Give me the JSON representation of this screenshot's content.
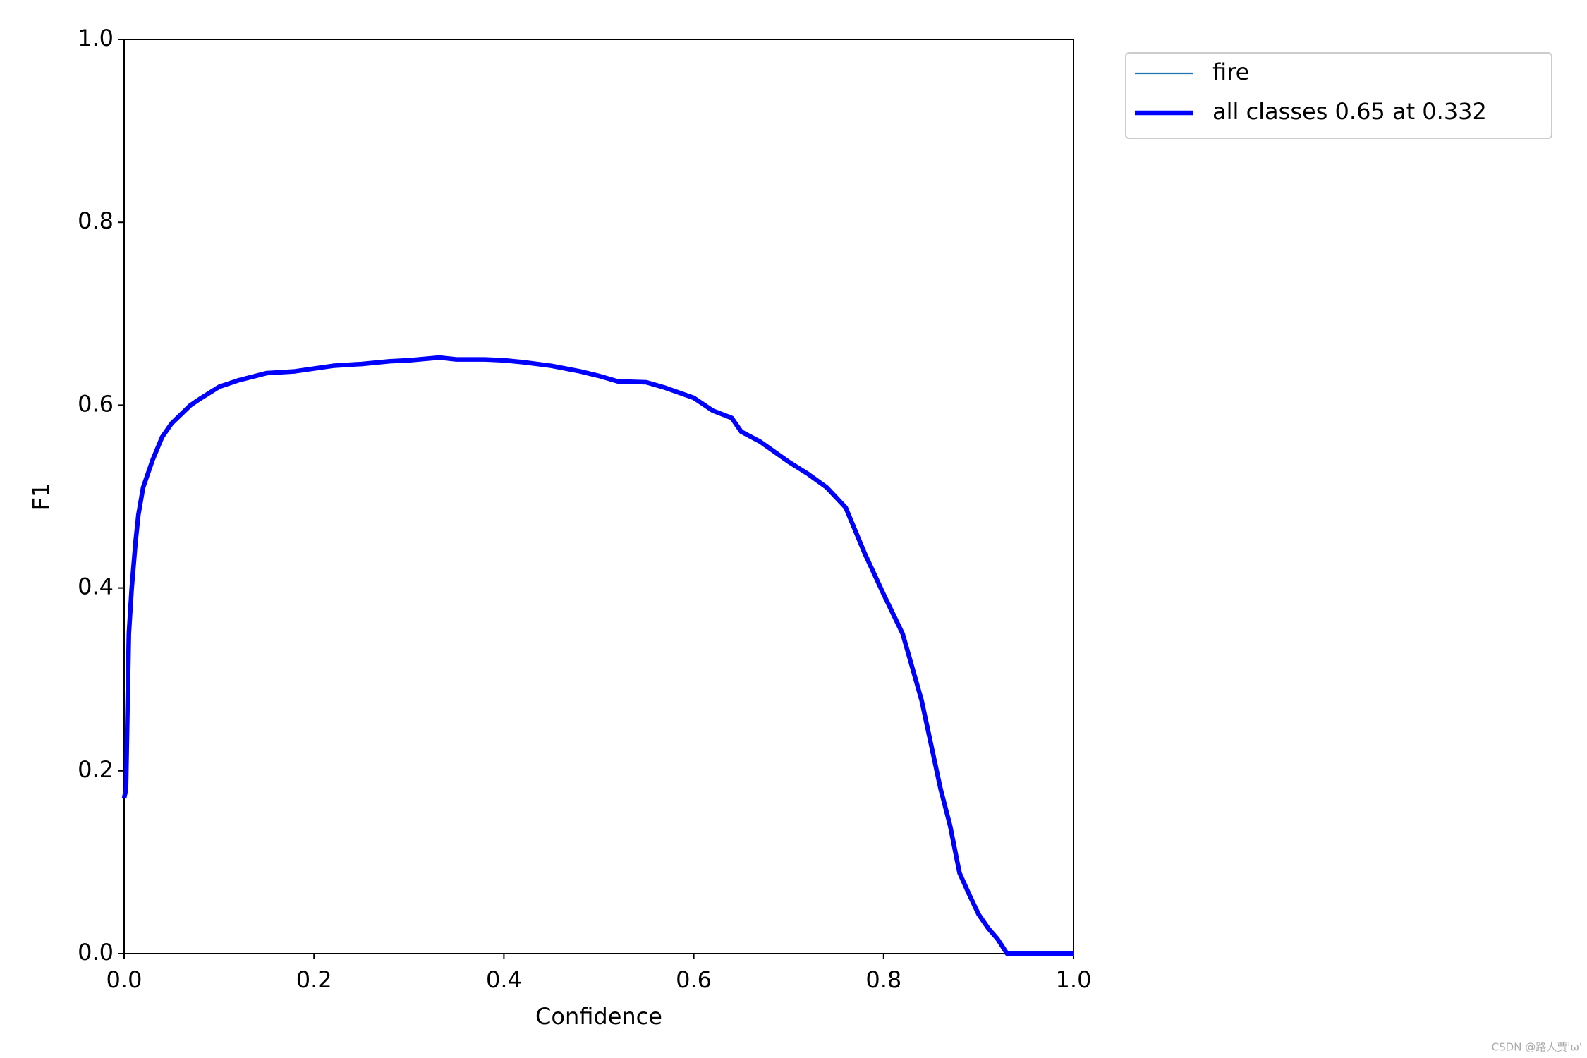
{
  "chart_data": {
    "type": "line",
    "xlabel": "Confidence",
    "ylabel": "F1",
    "x": [
      0,
      0.002,
      0.005,
      0.008,
      0.012,
      0.015,
      0.02,
      0.03,
      0.04,
      0.05,
      0.06,
      0.07,
      0.08,
      0.1,
      0.12,
      0.15,
      0.18,
      0.2,
      0.22,
      0.25,
      0.28,
      0.3,
      0.332,
      0.35,
      0.38,
      0.4,
      0.42,
      0.45,
      0.48,
      0.5,
      0.52,
      0.55,
      0.57,
      0.6,
      0.62,
      0.64,
      0.65,
      0.67,
      0.7,
      0.72,
      0.74,
      0.76,
      0.78,
      0.8,
      0.82,
      0.84,
      0.86,
      0.87,
      0.88,
      0.89,
      0.9,
      0.91,
      0.92,
      0.93,
      0.95,
      1.0
    ],
    "series": [
      {
        "name": "fire",
        "color": "#1f77b4",
        "values": [
          0.17,
          0.18,
          0.35,
          0.4,
          0.45,
          0.48,
          0.51,
          0.54,
          0.565,
          0.58,
          0.59,
          0.6,
          0.607,
          0.62,
          0.627,
          0.635,
          0.637,
          0.64,
          0.643,
          0.645,
          0.648,
          0.649,
          0.652,
          0.65,
          0.65,
          0.649,
          0.647,
          0.643,
          0.637,
          0.632,
          0.626,
          0.625,
          0.619,
          0.608,
          0.594,
          0.586,
          0.571,
          0.56,
          0.538,
          0.525,
          0.51,
          0.488,
          0.438,
          0.393,
          0.35,
          0.277,
          0.18,
          0.14,
          0.088,
          0.065,
          0.043,
          0.028,
          0.016,
          0,
          0,
          0
        ]
      },
      {
        "name": "all classes 0.65 at 0.332",
        "color": "#0000ff",
        "values": [
          0.17,
          0.18,
          0.35,
          0.4,
          0.45,
          0.48,
          0.51,
          0.54,
          0.565,
          0.58,
          0.59,
          0.6,
          0.607,
          0.62,
          0.627,
          0.635,
          0.637,
          0.64,
          0.643,
          0.645,
          0.648,
          0.649,
          0.652,
          0.65,
          0.65,
          0.649,
          0.647,
          0.643,
          0.637,
          0.632,
          0.626,
          0.625,
          0.619,
          0.608,
          0.594,
          0.586,
          0.571,
          0.56,
          0.538,
          0.525,
          0.51,
          0.488,
          0.438,
          0.393,
          0.35,
          0.277,
          0.18,
          0.14,
          0.088,
          0.065,
          0.043,
          0.028,
          0.016,
          0,
          0,
          0
        ]
      }
    ],
    "xlim": [
      0,
      1
    ],
    "ylim": [
      0,
      1
    ],
    "xticks": [
      {
        "value": 0,
        "label": "0.0"
      },
      0.2,
      0.4,
      0.6,
      0.8,
      {
        "value": 1,
        "label": "1.0"
      }
    ],
    "yticks": [
      {
        "value": 0,
        "label": "0.0"
      },
      0.2,
      0.4,
      0.6,
      0.8,
      {
        "value": 1,
        "label": "1.0"
      }
    ],
    "grid": false,
    "legend": "outside",
    "watermark": "CSDN @路人贾'ω'"
  }
}
